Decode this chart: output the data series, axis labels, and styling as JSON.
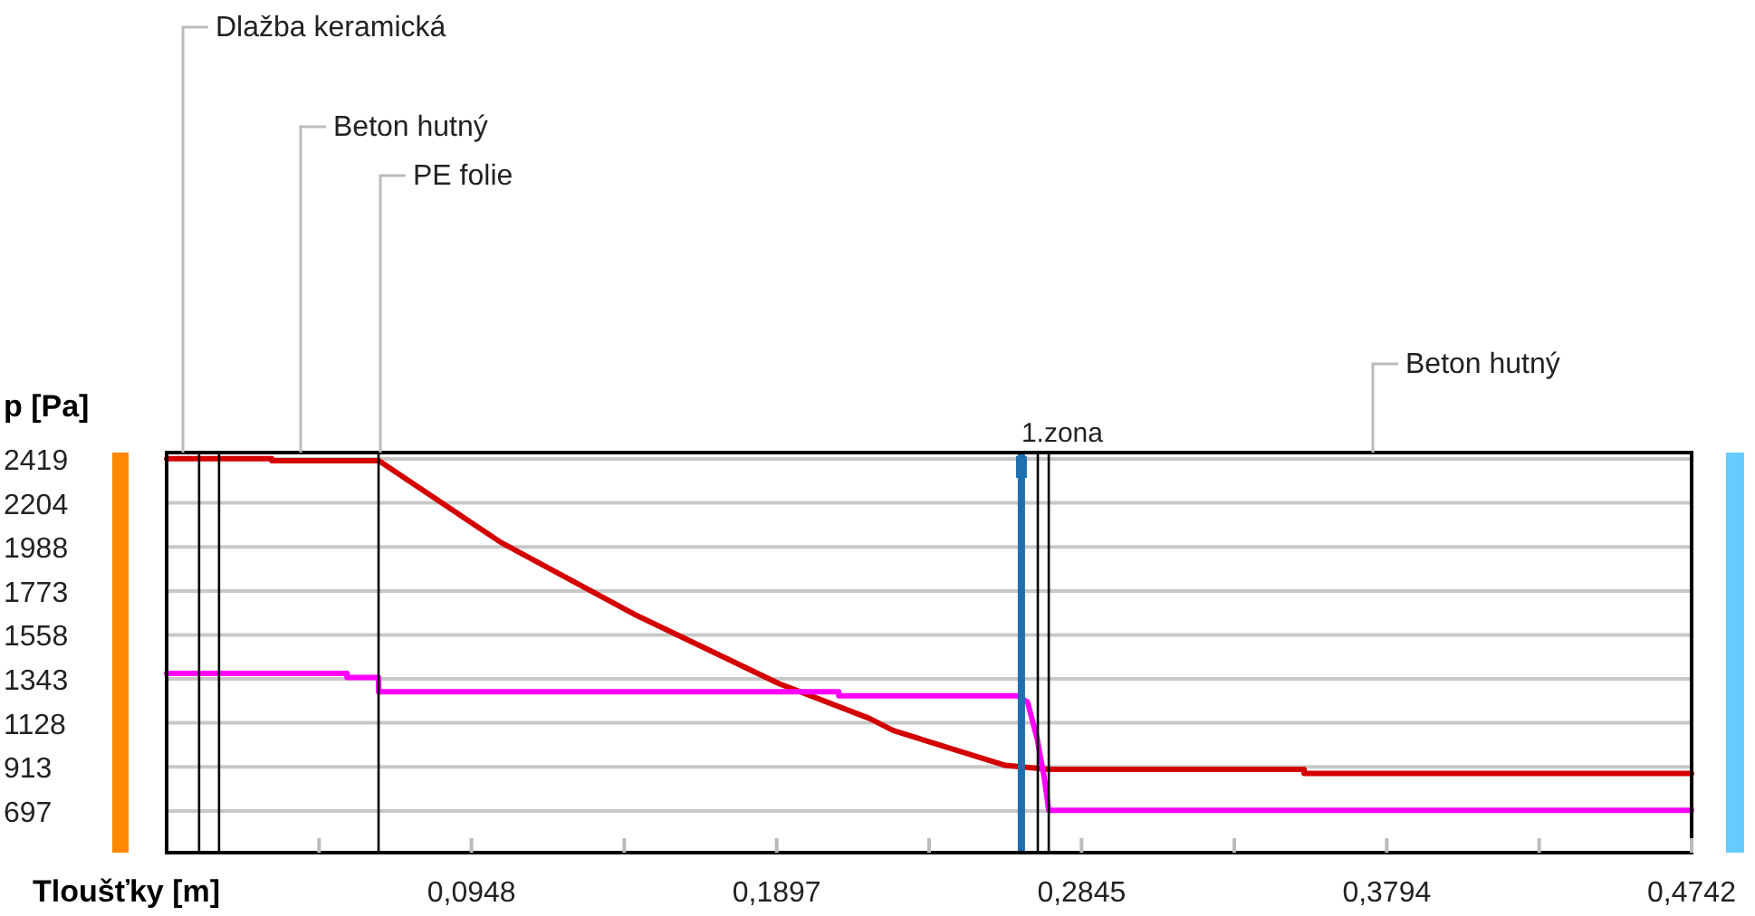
{
  "chart_data": {
    "type": "line",
    "xlabel": "Tloušťky [m]",
    "ylabel": "p [Pa]",
    "xlim": [
      0,
      0.4742
    ],
    "ylim": [
      493,
      2450
    ],
    "xticks": [
      {
        "value": 0.0474,
        "label": null
      },
      {
        "value": 0.0948,
        "label": "0,0948"
      },
      {
        "value": 0.1423,
        "label": null
      },
      {
        "value": 0.1897,
        "label": "0,1897"
      },
      {
        "value": 0.2371,
        "label": null
      },
      {
        "value": 0.2845,
        "label": "0,2845"
      },
      {
        "value": 0.332,
        "label": null
      },
      {
        "value": 0.3794,
        "label": "0,3794"
      },
      {
        "value": 0.4268,
        "label": null
      },
      {
        "value": 0.4742,
        "label": "0,4742"
      }
    ],
    "yticks": [
      697,
      913,
      1128,
      1343,
      1558,
      1773,
      1988,
      2204,
      2419
    ],
    "grid": "y",
    "marker": "none",
    "line_style": "solid",
    "series": [
      {
        "color": "#d40000",
        "x": [
          0,
          0.0327,
          0.0327,
          0.066,
          0.104,
          0.1453,
          0.1904,
          0.2185,
          0.226,
          0.2608,
          0.2743,
          0.3537,
          0.3537,
          0.4742
        ],
        "values": [
          2420,
          2420,
          2410,
          2410,
          2010,
          1660,
          1320,
          1150,
          1090,
          920,
          900,
          900,
          880,
          880
        ]
      },
      {
        "color": "#ff00ff",
        "x": [
          0,
          0.0561,
          0.0561,
          0.0659,
          0.0659,
          0.209,
          0.209,
          0.2645,
          0.2677,
          0.2707,
          0.2729,
          0.2743,
          0.4742
        ],
        "values": [
          1370,
          1370,
          1350,
          1350,
          1280,
          1280,
          1260,
          1260,
          1230,
          1050,
          860,
          700,
          700
        ]
      }
    ],
    "ref_lines": [
      {
        "axis": "x",
        "value": 0.0101,
        "color": "#000000"
      },
      {
        "axis": "x",
        "value": 0.0163,
        "color": "#000000"
      },
      {
        "axis": "x",
        "value": 0.0659,
        "color": "#000000"
      },
      {
        "axis": "x",
        "value": 0.2658,
        "color": "#1f6fb0",
        "label": "1.zona"
      },
      {
        "axis": "x",
        "value": 0.2709,
        "color": "#000000"
      },
      {
        "axis": "x",
        "value": 0.2743,
        "color": "#000000"
      }
    ],
    "annotations": [
      "Dlažba keramická",
      "Beton hutný",
      "PE folie",
      "Beton hutný"
    ]
  }
}
